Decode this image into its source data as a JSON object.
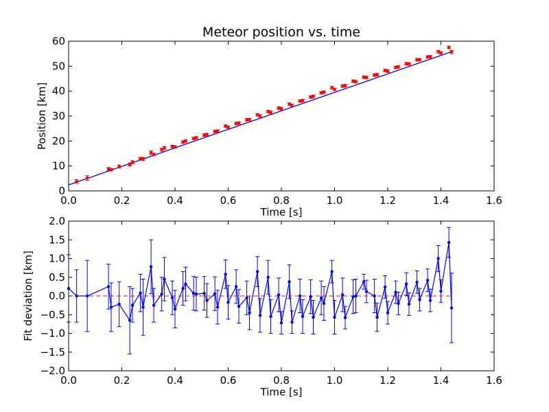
{
  "chart_data": [
    {
      "type": "scatter",
      "title": "Meteor position vs. time",
      "xlabel": "Time [s]",
      "ylabel": "Position [km]",
      "xlim": [
        0.0,
        1.6
      ],
      "ylim": [
        0,
        60
      ],
      "xticks": [
        "0.0",
        "0.2",
        "0.4",
        "0.6",
        "0.8",
        "1.0",
        "1.2",
        "1.4",
        "1.6"
      ],
      "yticks": [
        "0",
        "10",
        "20",
        "30",
        "40",
        "50",
        "60"
      ],
      "grid": false,
      "colors": {
        "points": "#ff0000",
        "fit": "#0000ff"
      },
      "fit_line": {
        "x": [
          0.0,
          1.44
        ],
        "y": [
          2.4,
          55.8
        ]
      },
      "points": {
        "x": [
          0.03,
          0.07,
          0.15,
          0.16,
          0.19,
          0.23,
          0.24,
          0.27,
          0.28,
          0.31,
          0.32,
          0.35,
          0.36,
          0.39,
          0.4,
          0.43,
          0.44,
          0.47,
          0.48,
          0.51,
          0.52,
          0.55,
          0.56,
          0.59,
          0.6,
          0.63,
          0.64,
          0.67,
          0.68,
          0.71,
          0.72,
          0.75,
          0.76,
          0.79,
          0.8,
          0.83,
          0.84,
          0.87,
          0.88,
          0.91,
          0.92,
          0.95,
          0.96,
          0.99,
          1.0,
          1.03,
          1.04,
          1.07,
          1.08,
          1.11,
          1.12,
          1.15,
          1.16,
          1.19,
          1.2,
          1.23,
          1.24,
          1.27,
          1.28,
          1.31,
          1.32,
          1.35,
          1.36,
          1.39,
          1.4,
          1.43,
          1.44
        ],
        "y": [
          3.8,
          5.2,
          8.8,
          8.5,
          9.8,
          10.6,
          11.5,
          13.0,
          12.8,
          15.3,
          14.6,
          16.5,
          17.2,
          17.8,
          17.6,
          19.6,
          20.0,
          21.0,
          21.3,
          22.4,
          22.6,
          23.8,
          24.0,
          26.0,
          25.5,
          27.0,
          27.2,
          28.5,
          28.6,
          30.5,
          30.0,
          31.8,
          31.5,
          33.2,
          32.9,
          34.8,
          34.3,
          36.0,
          36.2,
          37.6,
          37.9,
          39.3,
          39.6,
          41.4,
          40.7,
          42.0,
          42.2,
          44.0,
          43.8,
          45.6,
          45.5,
          46.4,
          46.6,
          48.3,
          48.0,
          49.5,
          49.7,
          51.0,
          50.9,
          52.6,
          52.6,
          53.7,
          53.8,
          55.8,
          55.3,
          57.5,
          55.7
        ],
        "yerr": [
          0.7,
          0.9,
          0.6,
          0.5,
          0.6,
          0.6,
          0.6,
          0.5,
          0.6,
          0.7,
          0.5,
          0.6,
          0.6,
          0.5,
          0.5,
          0.5,
          0.5,
          0.5,
          0.5,
          0.5,
          0.5,
          0.5,
          0.5,
          0.5,
          0.5,
          0.5,
          0.5,
          0.5,
          0.5,
          0.5,
          0.5,
          0.5,
          0.5,
          0.5,
          0.5,
          0.5,
          0.5,
          0.5,
          0.5,
          0.5,
          0.5,
          0.5,
          0.5,
          0.5,
          0.5,
          0.5,
          0.5,
          0.5,
          0.5,
          0.5,
          0.5,
          0.5,
          0.5,
          0.5,
          0.5,
          0.5,
          0.5,
          0.5,
          0.5,
          0.5,
          0.5,
          0.5,
          0.5,
          0.5,
          0.5,
          0.5,
          0.6
        ]
      }
    },
    {
      "type": "line",
      "xlabel": "Time [s]",
      "ylabel": "Fit deviation [km]",
      "xlim": [
        0.0,
        1.6
      ],
      "ylim": [
        -2.0,
        2.0
      ],
      "xticks": [
        "0.0",
        "0.2",
        "0.4",
        "0.6",
        "0.8",
        "1.0",
        "1.2",
        "1.4",
        "1.6"
      ],
      "yticks": [
        "−2.0",
        "−1.5",
        "−1.0",
        "−0.5",
        "0.0",
        "0.5",
        "1.0",
        "1.5",
        "2.0"
      ],
      "grid": false,
      "reference_line": {
        "y": 0.0,
        "color": "#ff0000",
        "style": "dashed"
      },
      "colors": {
        "series": "#0000ff"
      },
      "series": [
        {
          "x": [
            0.0,
            0.03,
            0.07,
            0.15,
            0.16,
            0.19,
            0.23,
            0.24,
            0.27,
            0.28,
            0.31,
            0.32,
            0.35,
            0.36,
            0.39,
            0.4,
            0.43,
            0.44,
            0.47,
            0.48,
            0.51,
            0.52,
            0.55,
            0.56,
            0.59,
            0.6,
            0.63,
            0.64,
            0.67,
            0.68,
            0.71,
            0.72,
            0.75,
            0.76,
            0.79,
            0.8,
            0.83,
            0.84,
            0.87,
            0.88,
            0.91,
            0.92,
            0.95,
            0.96,
            0.99,
            1.0,
            1.03,
            1.04,
            1.07,
            1.08,
            1.11,
            1.12,
            1.15,
            1.16,
            1.19,
            1.2,
            1.23,
            1.24,
            1.27,
            1.28,
            1.31,
            1.32,
            1.35,
            1.36,
            1.39,
            1.4,
            1.43,
            1.44
          ],
          "y": [
            0.2,
            0.0,
            0.0,
            0.25,
            -0.3,
            -0.22,
            -0.65,
            -0.25,
            0.08,
            -0.3,
            0.78,
            -0.25,
            0.05,
            0.45,
            -0.05,
            -0.35,
            0.2,
            0.32,
            0.07,
            0.05,
            0.07,
            -0.12,
            0.06,
            -0.3,
            0.58,
            -0.17,
            0.25,
            -0.28,
            -0.05,
            -0.45,
            0.65,
            -0.52,
            0.5,
            -0.55,
            0.03,
            -0.72,
            0.38,
            -0.7,
            0.0,
            -0.55,
            -0.02,
            -0.57,
            -0.05,
            -0.2,
            0.65,
            -0.57,
            0.03,
            -0.58,
            -0.02,
            0.0,
            0.38,
            0.12,
            0.0,
            -0.57,
            0.24,
            -0.45,
            0.1,
            -0.2,
            0.32,
            -0.22,
            0.37,
            -0.1,
            0.42,
            -0.12,
            1.0,
            0.13,
            1.43,
            -0.32
          ],
          "yerr": [
            0.9,
            0.7,
            0.95,
            0.6,
            0.65,
            0.6,
            0.9,
            0.45,
            0.5,
            0.75,
            0.72,
            0.45,
            0.45,
            0.58,
            0.45,
            0.5,
            0.45,
            0.45,
            0.45,
            0.45,
            0.45,
            0.45,
            0.45,
            0.45,
            0.38,
            0.45,
            0.45,
            0.45,
            0.45,
            0.45,
            0.4,
            0.45,
            0.45,
            0.45,
            0.45,
            0.3,
            0.45,
            0.3,
            0.45,
            0.45,
            0.45,
            0.45,
            0.45,
            0.45,
            0.3,
            0.45,
            0.45,
            0.3,
            0.45,
            0.45,
            0.2,
            0.3,
            0.45,
            0.38,
            0.3,
            0.3,
            0.3,
            0.3,
            0.3,
            0.3,
            0.3,
            0.3,
            0.3,
            0.3,
            0.35,
            0.3,
            0.4,
            0.93
          ]
        }
      ]
    }
  ]
}
